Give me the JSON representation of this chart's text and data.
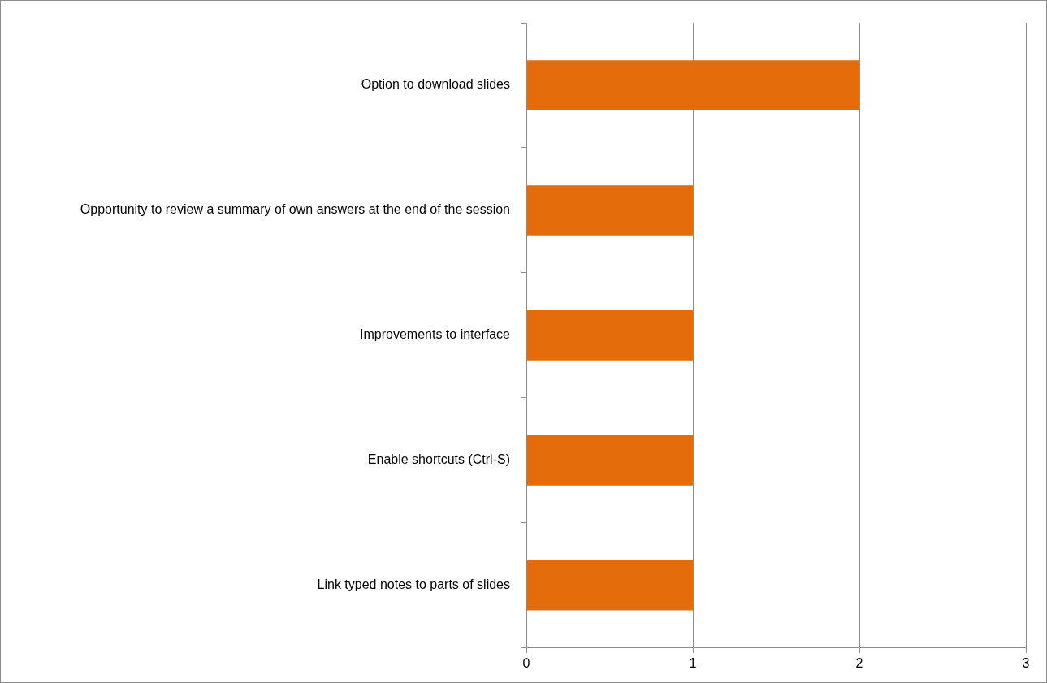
{
  "chart_data": {
    "type": "bar",
    "orientation": "horizontal",
    "categories": [
      "Option to download slides",
      "Opportunity to review a summary of own answers at the end of the session",
      "Improvements to interface",
      "Enable shortcuts (Ctrl-S)",
      "Link typed notes to parts of slides"
    ],
    "values": [
      2,
      1,
      1,
      1,
      1
    ],
    "color": "#e46c0a",
    "xlim": [
      0,
      3
    ],
    "xticks": [
      0,
      1,
      2,
      3
    ],
    "grid": "x",
    "legend": false
  }
}
